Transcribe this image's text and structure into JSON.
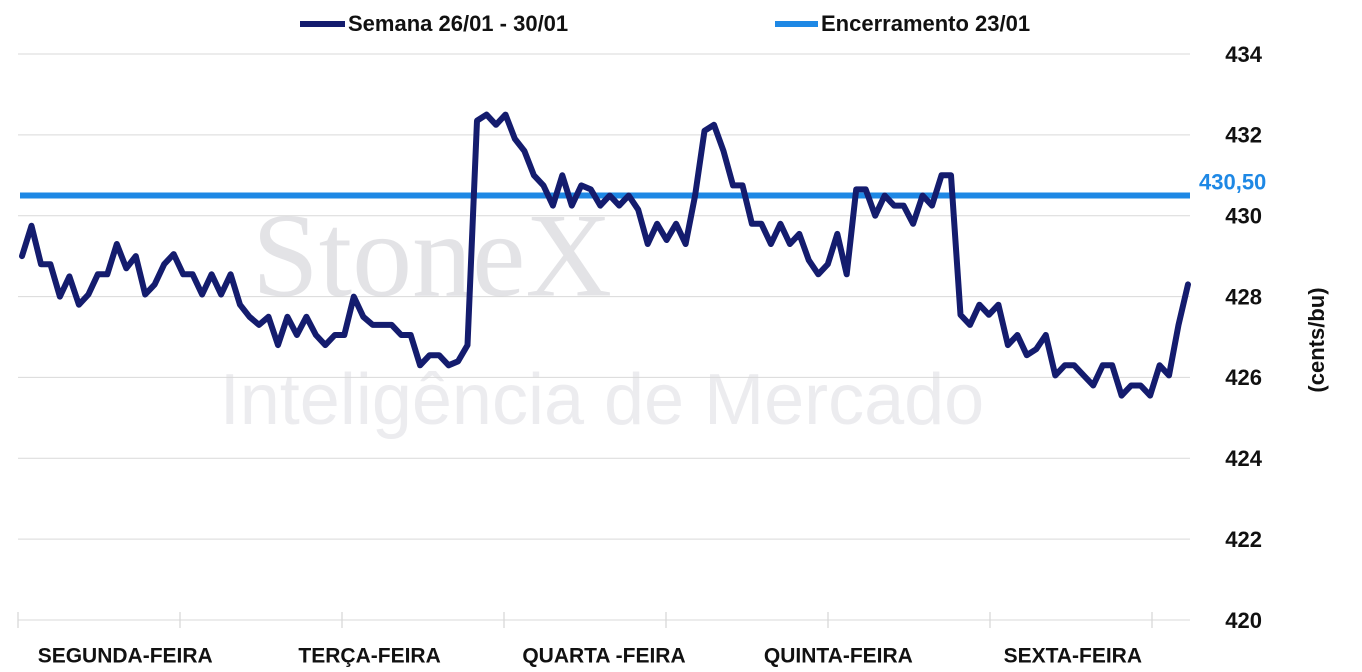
{
  "chart_data": {
    "type": "line",
    "watermark": {
      "brand": "StoneX",
      "subtitle": "Inteligência de Mercado"
    },
    "y_label": "(cents/bu)",
    "x_labels": [
      "SEGUNDA-FEIRA",
      "TERÇA-FEIRA",
      "QUARTA -FEIRA",
      "QUINTA-FEIRA",
      "SEXTA-FEIRA"
    ],
    "series": [
      {
        "name": "Semana 26/01 - 30/01",
        "color": "#141c6e",
        "values": [
          429.0,
          429.75,
          428.8,
          428.8,
          428.0,
          428.5,
          427.8,
          428.05,
          428.55,
          428.55,
          429.3,
          428.7,
          429.0,
          428.05,
          428.3,
          428.8,
          429.05,
          428.55,
          428.55,
          428.05,
          428.55,
          428.05,
          428.55,
          427.8,
          427.5,
          427.3,
          427.5,
          426.8,
          427.5,
          427.05,
          427.5,
          427.05,
          426.8,
          427.05,
          427.05,
          428.0,
          427.5,
          427.3,
          427.3,
          427.3,
          427.05,
          427.05,
          426.3,
          426.55,
          426.55,
          426.3,
          426.4,
          426.8,
          432.35,
          432.5,
          432.25,
          432.5,
          431.9,
          431.6,
          431.0,
          430.75,
          430.25,
          431.0,
          430.25,
          430.75,
          430.65,
          430.25,
          430.5,
          430.25,
          430.5,
          430.15,
          429.3,
          429.8,
          429.4,
          429.8,
          429.3,
          430.5,
          432.1,
          432.25,
          431.6,
          430.75,
          430.75,
          429.8,
          429.8,
          429.3,
          429.8,
          429.3,
          429.55,
          428.9,
          428.55,
          428.8,
          429.55,
          428.55,
          430.65,
          430.65,
          430.0,
          430.5,
          430.25,
          430.25,
          429.8,
          430.5,
          430.25,
          431.0,
          431.0,
          427.55,
          427.3,
          427.8,
          427.55,
          427.8,
          426.8,
          427.05,
          426.55,
          426.7,
          427.05,
          426.05,
          426.3,
          426.3,
          426.05,
          425.8,
          426.3,
          426.3,
          425.55,
          425.8,
          425.8,
          425.55,
          426.3,
          426.05,
          427.3,
          428.3
        ]
      }
    ],
    "reference_line": {
      "name": "Encerramento 23/01",
      "value": 430.5,
      "label": "430,50",
      "color": "#1e88e5"
    },
    "ylim": [
      420,
      434
    ],
    "yticks": [
      420,
      422,
      424,
      426,
      428,
      430,
      432,
      434
    ],
    "grid": true
  }
}
